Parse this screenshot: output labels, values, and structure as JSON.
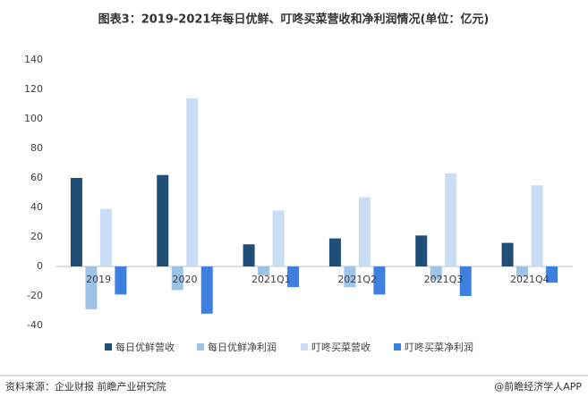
{
  "chart_data": {
    "type": "bar",
    "title": "图表3：2019-2021年每日优鲜、叮咚买菜营收和净利润情况(单位：亿元)",
    "categories": [
      "2019",
      "2020",
      "2021Q1",
      "2021Q2",
      "2021Q3",
      "2021Q4"
    ],
    "series": [
      {
        "name": "每日优鲜营收",
        "color": "#1f4e79",
        "values": [
          60,
          62,
          15,
          19,
          21,
          16
        ]
      },
      {
        "name": "每日优鲜净利润",
        "color": "#9dc3e6",
        "values": [
          -29,
          -16,
          -6,
          -14,
          -9,
          -7
        ]
      },
      {
        "name": "叮咚买菜营收",
        "color": "#c9ddf5",
        "values": [
          39,
          114,
          38,
          47,
          63,
          55
        ]
      },
      {
        "name": "叮咚买菜净利润",
        "color": "#3f7fe0",
        "values": [
          -19,
          -32,
          -14,
          -19,
          -20,
          -11
        ]
      }
    ],
    "ylim": [
      -40,
      140
    ],
    "yticks": [
      -40,
      -20,
      0,
      20,
      40,
      60,
      80,
      100,
      120,
      140
    ],
    "grid": false,
    "legend": "bottom",
    "source": "资料来源：企业财报 前瞻产业研究院",
    "credit": "@前瞻经济学人APP"
  }
}
